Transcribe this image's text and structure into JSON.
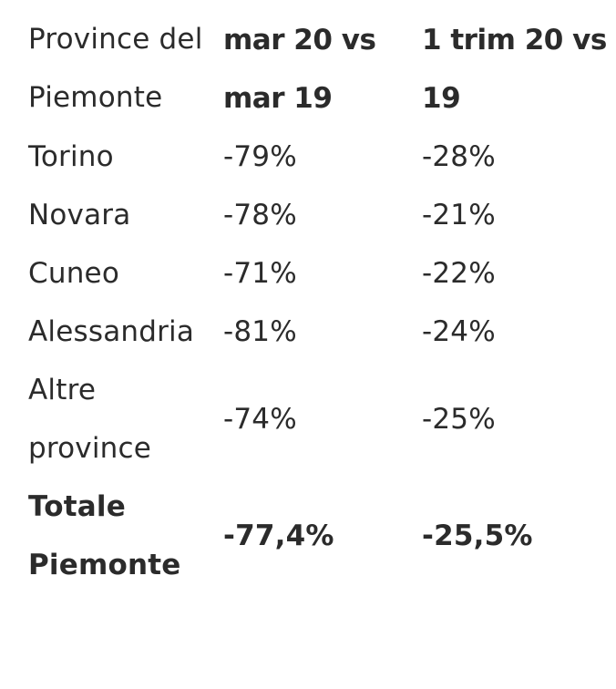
{
  "table": {
    "headers": [
      "Province del Piemonte",
      "mar 20 vs mar 19",
      "1 trim 20 vs 19"
    ],
    "rows": [
      {
        "province": "Torino",
        "mar": "-79%",
        "trim": "-28%"
      },
      {
        "province": "Novara",
        "mar": "-78%",
        "trim": "-21%"
      },
      {
        "province": "Cuneo",
        "mar": "-71%",
        "trim": "-22%"
      },
      {
        "province": "Alessandria",
        "mar": "-81%",
        "trim": "-24%"
      },
      {
        "province": "Altre province",
        "mar": "-74%",
        "trim": "-25%"
      }
    ],
    "total": {
      "province": "Totale Piemonte",
      "mar": "-77,4%",
      "trim": "-25,5%"
    }
  }
}
